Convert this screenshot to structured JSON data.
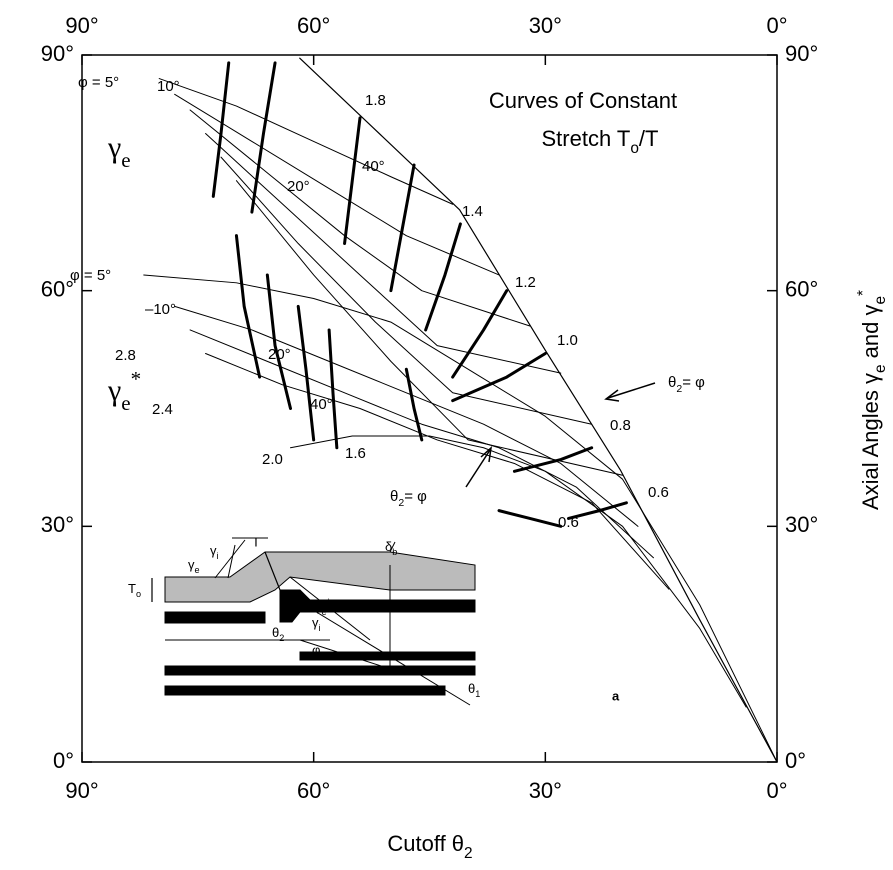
{
  "chart_data": {
    "type": "line",
    "title_line1": "Curves of Constant",
    "title_line2": {
      "main": "Stretch T",
      "sub": "o",
      "end": "/T"
    },
    "xlabel": {
      "main": "Cutoff θ",
      "sub": "2"
    },
    "ylabel": {
      "part1": "Axial Angles γ",
      "sub1": "e",
      "part2": " and γ",
      "sub2": "e",
      "sup2": "*"
    },
    "xlim": [
      90,
      0
    ],
    "ylim": [
      0,
      90
    ],
    "xticks": [
      {
        "value": 90,
        "label": "90°"
      },
      {
        "value": 60,
        "label": "60°"
      },
      {
        "value": 30,
        "label": "30°"
      },
      {
        "value": 0,
        "label": "0°"
      }
    ],
    "yticks": [
      {
        "value": 0,
        "label": "0°"
      },
      {
        "value": 30,
        "label": "30°"
      },
      {
        "value": 60,
        "label": "60°"
      },
      {
        "value": 90,
        "label": "90°"
      }
    ],
    "series": [
      {
        "color": "#000",
        "width": 1.2,
        "x": [
          61.8,
          41.1,
          30,
          20.3,
          10,
          0
        ],
        "values": [
          89.6,
          70.3,
          52.4,
          37.2,
          18.1,
          0
        ]
      },
      {
        "color": "#000",
        "width": 1,
        "x": [
          80,
          70,
          60,
          50,
          42
        ],
        "values": [
          87,
          83.5,
          79,
          74.5,
          71
        ]
      },
      {
        "color": "#000",
        "width": 1,
        "x": [
          78,
          68,
          58,
          48,
          36
        ],
        "values": [
          85,
          79,
          73,
          67,
          62
        ]
      },
      {
        "color": "#000",
        "width": 1,
        "x": [
          76,
          66,
          56,
          46,
          32
        ],
        "values": [
          83,
          75,
          67,
          60,
          55.5
        ]
      },
      {
        "color": "#000",
        "width": 1,
        "x": [
          74,
          64,
          54,
          44,
          28
        ],
        "values": [
          80,
          71,
          62,
          53,
          49.5
        ]
      },
      {
        "color": "#000",
        "width": 1,
        "x": [
          72,
          62,
          52,
          42,
          24
        ],
        "values": [
          77,
          66,
          56,
          47,
          43
        ]
      },
      {
        "color": "#000",
        "width": 1,
        "x": [
          70,
          60,
          50,
          40,
          20
        ],
        "values": [
          74,
          62,
          51,
          41,
          36.5
        ]
      },
      {
        "color": "#000",
        "width": 3,
        "x": [
          71,
          72,
          73
        ],
        "values": [
          89,
          80,
          72
        ]
      },
      {
        "color": "#000",
        "width": 3,
        "x": [
          65,
          66.5,
          68
        ],
        "values": [
          89,
          80,
          70
        ]
      },
      {
        "color": "#000",
        "width": 3,
        "x": [
          54,
          55,
          56
        ],
        "values": [
          82,
          74,
          66
        ]
      },
      {
        "color": "#000",
        "width": 3,
        "x": [
          47,
          48.5,
          50
        ],
        "values": [
          76,
          68,
          60
        ]
      },
      {
        "color": "#000",
        "width": 3,
        "x": [
          41,
          43,
          45.5
        ],
        "values": [
          68.5,
          62,
          55
        ]
      },
      {
        "color": "#000",
        "width": 3,
        "x": [
          35,
          38,
          42
        ],
        "values": [
          60,
          55,
          49
        ]
      },
      {
        "color": "#000",
        "width": 3,
        "x": [
          30,
          35,
          42
        ],
        "values": [
          52,
          49,
          46
        ]
      },
      {
        "color": "#000",
        "width": 3,
        "x": [
          24,
          28,
          34
        ],
        "values": [
          40,
          38.5,
          37
        ]
      },
      {
        "color": "#000",
        "width": 3,
        "x": [
          19.5,
          23,
          27
        ],
        "values": [
          33,
          32,
          31
        ]
      },
      {
        "color": "#000",
        "width": 1,
        "x": [
          82,
          70,
          60,
          50,
          40,
          30,
          20,
          10,
          0
        ],
        "values": [
          62,
          61,
          59,
          56,
          50,
          44,
          36,
          20,
          0
        ]
      },
      {
        "color": "#000",
        "width": 1,
        "x": [
          78,
          68,
          58,
          48,
          38,
          28,
          18
        ],
        "values": [
          58,
          55,
          51,
          47,
          43,
          38,
          30
        ]
      },
      {
        "color": "#000",
        "width": 1,
        "x": [
          76,
          66,
          56,
          46,
          36,
          26,
          16
        ],
        "values": [
          55,
          51,
          47,
          43,
          40,
          35,
          26
        ]
      },
      {
        "color": "#000",
        "width": 1,
        "x": [
          74,
          64,
          54,
          44,
          34,
          24,
          14
        ],
        "values": [
          52,
          48,
          45,
          41,
          38,
          33,
          22
        ]
      },
      {
        "color": "#000",
        "width": 1,
        "x": [
          63,
          55,
          45,
          38,
          30,
          20,
          10,
          4
        ],
        "values": [
          40,
          41.5,
          41.5,
          40,
          37,
          30,
          17,
          7
        ]
      },
      {
        "color": "#000",
        "width": 3,
        "x": [
          70,
          69,
          67
        ],
        "values": [
          67,
          58,
          49
        ]
      },
      {
        "color": "#000",
        "width": 3,
        "x": [
          66,
          65,
          63
        ],
        "values": [
          62,
          53,
          45
        ]
      },
      {
        "color": "#000",
        "width": 3,
        "x": [
          62,
          61,
          60
        ],
        "values": [
          58,
          50,
          41
        ]
      },
      {
        "color": "#000",
        "width": 3,
        "x": [
          58,
          57.5,
          57
        ],
        "values": [
          55,
          47,
          40
        ]
      },
      {
        "color": "#000",
        "width": 3,
        "x": [
          48,
          47,
          46
        ],
        "values": [
          50,
          45,
          41
        ]
      },
      {
        "color": "#000",
        "width": 3,
        "x": [
          28,
          32,
          36
        ],
        "values": [
          30,
          31,
          32
        ]
      }
    ],
    "annotations": [
      "φ = 5°",
      "10°",
      "20°",
      "40°",
      "1.8",
      "1.4",
      "1.2",
      "1.0",
      "0.8",
      "0.6",
      "φ = 5°",
      "–10°",
      "2.8",
      "20°",
      "2.4",
      "40°",
      "2.0",
      "1.6",
      "0.6",
      {
        "main": "θ",
        "sub": "2",
        "end": "= φ"
      },
      {
        "main": "θ",
        "sub": "2",
        "end": "= φ"
      }
    ],
    "big_labels": [
      {
        "main": "γ",
        "sub": "e"
      },
      {
        "main": "γ",
        "sub": "e",
        "sup": "*"
      }
    ],
    "inset_labels": [
      "T",
      {
        "main": "δ",
        "sub": "b"
      },
      {
        "main": "γ",
        "sub": "e"
      },
      {
        "main": "γ",
        "sub": "i"
      },
      {
        "main": "T",
        "sub": "o"
      },
      {
        "main": "γ",
        "sub": "e",
        "sup": "*"
      },
      {
        "main": "γ",
        "sub": "i"
      },
      {
        "main": "θ",
        "sub": "2"
      },
      "φ",
      {
        "main": "θ",
        "sub": "1"
      },
      "a"
    ]
  }
}
